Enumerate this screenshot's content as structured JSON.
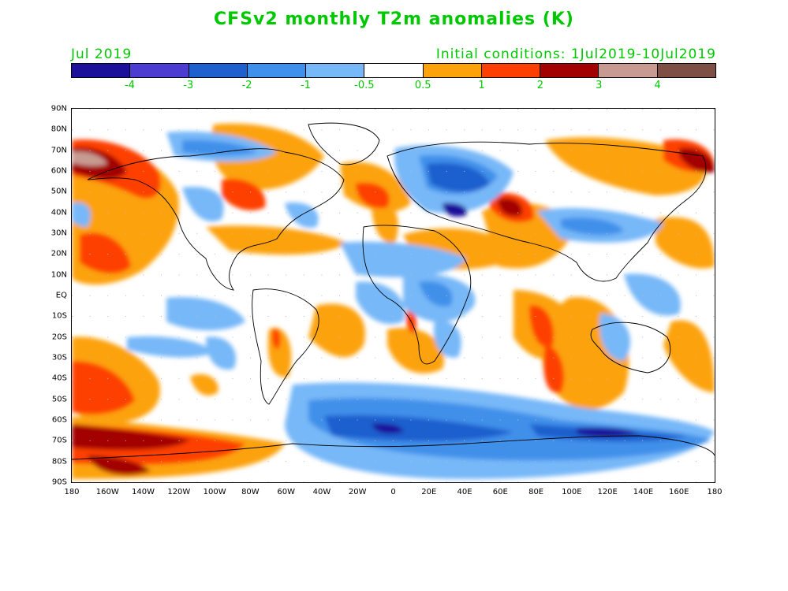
{
  "title": "CFSv2 monthly T2m anomalies (K)",
  "subtitle_left": "Jul 2019",
  "subtitle_right": "Initial conditions: 1Jul2019-10Jul2019",
  "colorbar": {
    "colors": [
      "#1c0f9a",
      "#4c3cd1",
      "#1f5fce",
      "#3f90ea",
      "#77b8f8",
      "#ffffff",
      "#fca20b",
      "#fd3f03",
      "#a30000",
      "#c89b92",
      "#7d4f45"
    ],
    "labels": [
      "-4",
      "-3",
      "-2",
      "-1",
      "-0.5",
      "0.5",
      "1",
      "2",
      "3",
      "4"
    ]
  },
  "map": {
    "lat_labels": [
      "90N",
      "80N",
      "70N",
      "60N",
      "50N",
      "40N",
      "30N",
      "20N",
      "10N",
      "EQ",
      "10S",
      "20S",
      "30S",
      "40S",
      "50S",
      "60S",
      "70S",
      "80S",
      "90S"
    ],
    "lon_labels": [
      "180",
      "160W",
      "140W",
      "120W",
      "100W",
      "80W",
      "60W",
      "40W",
      "20W",
      "0",
      "20E",
      "40E",
      "60E",
      "80E",
      "100E",
      "120E",
      "140E",
      "160E",
      "180"
    ]
  }
}
